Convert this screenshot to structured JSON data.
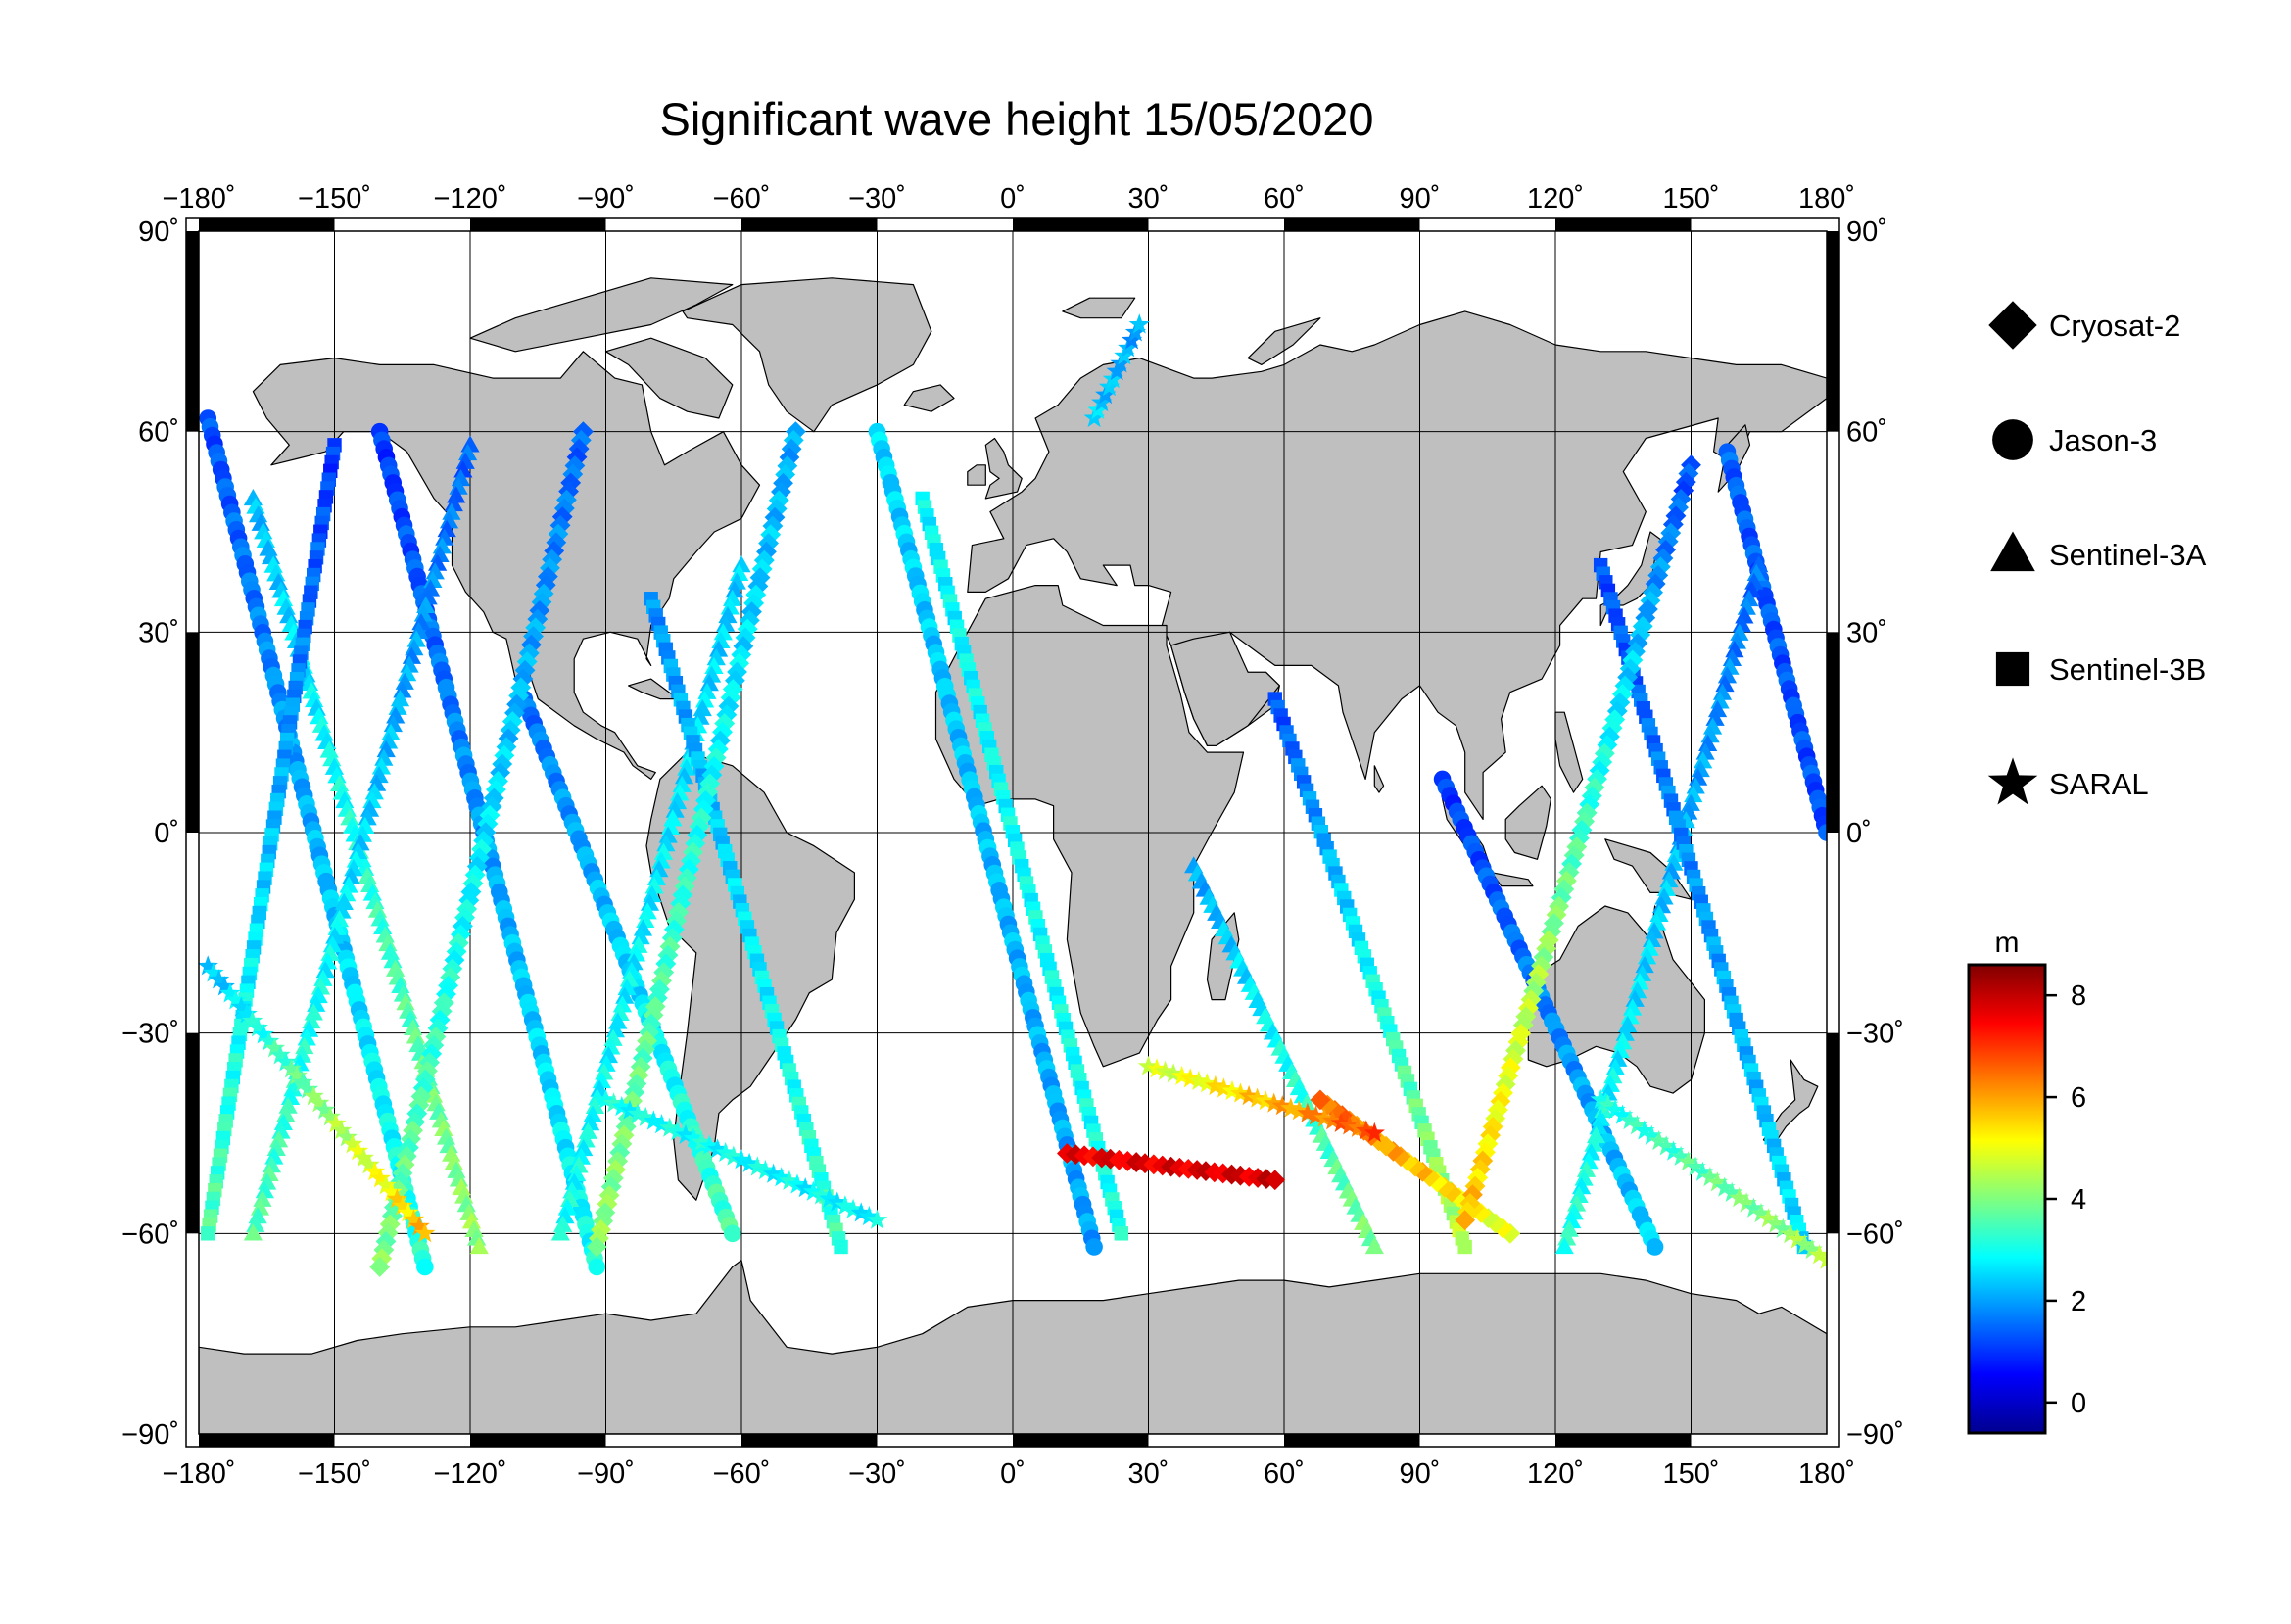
{
  "title": "Significant wave height 15/05/2020",
  "axes": {
    "lon_ticks": [
      -180,
      -150,
      -120,
      -90,
      -60,
      -30,
      0,
      30,
      60,
      90,
      120,
      150,
      180
    ],
    "lat_ticks": [
      90,
      60,
      30,
      0,
      -30,
      -60,
      -90
    ],
    "lon_labels": [
      "−180˚",
      "−150˚",
      "−120˚",
      "−90˚",
      "−60˚",
      "−30˚",
      "0˚",
      "30˚",
      "60˚",
      "90˚",
      "120˚",
      "150˚",
      "180˚"
    ],
    "lat_labels": [
      "90˚",
      "60˚",
      "30˚",
      "0˚",
      "−30˚",
      "−60˚",
      "−90˚"
    ],
    "lon_range": [
      -180,
      180
    ],
    "lat_range": [
      -90,
      90
    ],
    "grid": true
  },
  "legend": {
    "placement": "right",
    "items": [
      {
        "label": "Cryosat-2",
        "symbol": "diamond"
      },
      {
        "label": "Jason-3",
        "symbol": "circle"
      },
      {
        "label": "Sentinel-3A",
        "symbol": "triangle"
      },
      {
        "label": "Sentinel-3B",
        "symbol": "square"
      },
      {
        "label": "SARAL",
        "symbol": "star"
      }
    ]
  },
  "colorbar": {
    "unit": "m",
    "range": [
      -0.6,
      8.6
    ],
    "ticks": [
      0,
      2,
      4,
      6,
      8
    ],
    "tick_labels": [
      "0",
      "2",
      "4",
      "6",
      "8"
    ],
    "colormap": "jet"
  },
  "colors": {
    "land": "#bfbfbf",
    "ocean": "#ffffff",
    "frame": "#000000",
    "grid": "#000000"
  },
  "chart_data": {
    "type": "scatter",
    "title": "Significant wave height 15/05/2020",
    "xlim": [
      -180,
      180
    ],
    "ylim": [
      -90,
      90
    ],
    "color_variable": "significant wave height (m)",
    "series": [
      {
        "name": "Jason-3",
        "symbol": "circle",
        "tracks": [
          {
            "lon0": -178,
            "lat0": 62,
            "lon1": -130,
            "lat1": -65,
            "h0": 1.2,
            "h1": 3.2
          },
          {
            "lon0": -140,
            "lat0": 60,
            "lon1": -92,
            "lat1": -65,
            "h0": 1.0,
            "h1": 3.0
          },
          {
            "lon0": -108,
            "lat0": 20,
            "lon1": -62,
            "lat1": -60,
            "h0": 1.5,
            "h1": 3.5
          },
          {
            "lon0": -30,
            "lat0": 60,
            "lon1": 18,
            "lat1": -62,
            "h0": 2.5,
            "h1": 2.0
          },
          {
            "lon0": 95,
            "lat0": 8,
            "lon1": 142,
            "lat1": -62,
            "h0": 1.0,
            "h1": 2.5
          },
          {
            "lon0": 158,
            "lat0": 57,
            "lon1": 180,
            "lat1": 0,
            "h0": 1.4,
            "h1": 1.2
          }
        ]
      },
      {
        "name": "Sentinel-3A",
        "symbol": "triangle",
        "tracks": [
          {
            "lon0": -168,
            "lat0": 50,
            "lon1": -118,
            "lat1": -62,
            "h0": 2.2,
            "h1": 4.2
          },
          {
            "lon0": -120,
            "lat0": 58,
            "lon1": -168,
            "lat1": -60,
            "h0": 1.4,
            "h1": 3.6
          },
          {
            "lon0": -60,
            "lat0": 40,
            "lon1": -100,
            "lat1": -60,
            "h0": 2.4,
            "h1": 3.0
          },
          {
            "lon0": 40,
            "lat0": -5,
            "lon1": 80,
            "lat1": -62,
            "h0": 2.0,
            "h1": 4.0
          },
          {
            "lon0": 165,
            "lat0": 40,
            "lon1": 122,
            "lat1": -62,
            "h0": 1.5,
            "h1": 3.2
          }
        ]
      },
      {
        "name": "Sentinel-3B",
        "symbol": "square",
        "tracks": [
          {
            "lon0": -150,
            "lat0": 58,
            "lon1": -178,
            "lat1": -60,
            "h0": 1.0,
            "h1": 3.6
          },
          {
            "lon0": -80,
            "lat0": 35,
            "lon1": -38,
            "lat1": -62,
            "h0": 1.8,
            "h1": 3.4
          },
          {
            "lon0": -20,
            "lat0": 50,
            "lon1": 24,
            "lat1": -60,
            "h0": 2.8,
            "h1": 3.0
          },
          {
            "lon0": 58,
            "lat0": 20,
            "lon1": 100,
            "lat1": -62,
            "h0": 1.2,
            "h1": 4.6
          },
          {
            "lon0": 130,
            "lat0": 40,
            "lon1": 175,
            "lat1": -62,
            "h0": 1.2,
            "h1": 2.6
          }
        ]
      },
      {
        "name": "Cryosat-2",
        "symbol": "diamond",
        "tracks": [
          {
            "lon0": -95,
            "lat0": 60,
            "lon1": -140,
            "lat1": -65,
            "h0": 1.4,
            "h1": 4.0
          },
          {
            "lon0": -48,
            "lat0": 60,
            "lon1": -92,
            "lat1": -62,
            "h0": 2.0,
            "h1": 4.2
          },
          {
            "lon0": 12,
            "lat0": -48,
            "lon1": 58,
            "lat1": -52,
            "h0": 7.6,
            "h1": 7.8
          },
          {
            "lon0": 110,
            "lat0": -60,
            "lon1": 68,
            "lat1": -40,
            "h0": 4.8,
            "h1": 6.6
          },
          {
            "lon0": 150,
            "lat0": 55,
            "lon1": 100,
            "lat1": -58,
            "h0": 1.2,
            "h1": 5.8
          }
        ]
      },
      {
        "name": "SARAL",
        "symbol": "star",
        "tracks": [
          {
            "lon0": -178,
            "lat0": -20,
            "lon1": -130,
            "lat1": -60,
            "h0": 2.2,
            "h1": 5.8
          },
          {
            "lon0": -90,
            "lat0": -40,
            "lon1": -30,
            "lat1": -58,
            "h0": 3.0,
            "h1": 2.8
          },
          {
            "lon0": 30,
            "lat0": -35,
            "lon1": 80,
            "lat1": -45,
            "h0": 4.6,
            "h1": 6.8
          },
          {
            "lon0": 130,
            "lat0": -40,
            "lon1": 180,
            "lat1": -64,
            "h0": 3.0,
            "h1": 4.4
          },
          {
            "lon0": 18,
            "lat0": 62,
            "lon1": 28,
            "lat1": 76,
            "h0": 2.4,
            "h1": 2.0
          }
        ]
      }
    ]
  }
}
